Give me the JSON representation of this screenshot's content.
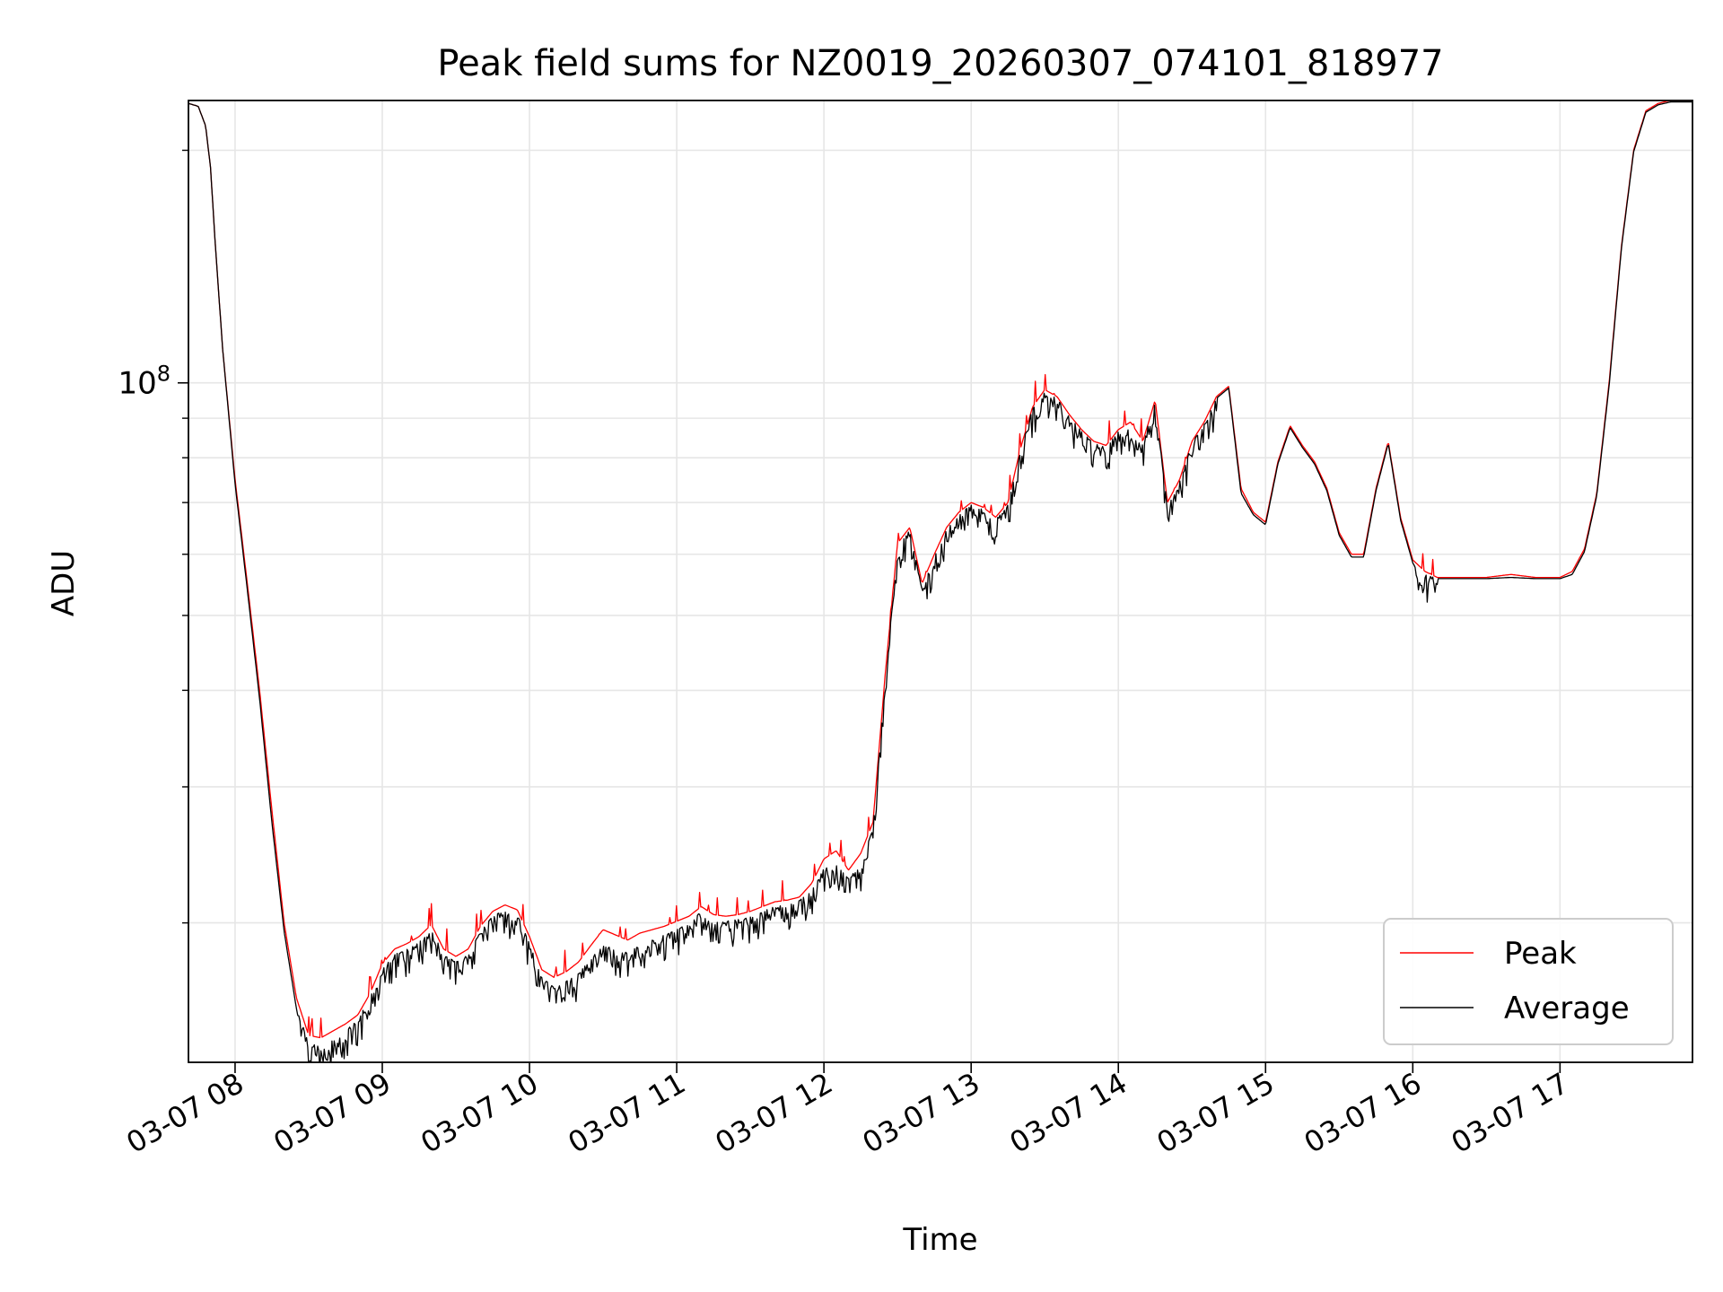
{
  "chart_data": {
    "type": "line",
    "title": "Peak field sums for NZ0019_20260307_074101_818977",
    "xlabel": "Time",
    "ylabel": "ADU",
    "y_scale": "log",
    "ylim": [
      13200000,
      232000000
    ],
    "xlim": [
      "03-07 07:41",
      "03-07 17:54"
    ],
    "x_ticks": [
      "03-07 08",
      "03-07 09",
      "03-07 10",
      "03-07 11",
      "03-07 12",
      "03-07 13",
      "03-07 14",
      "03-07 15",
      "03-07 16",
      "03-07 17"
    ],
    "y_tick_label_base": "10",
    "y_tick_label_exp": "8",
    "grid": true,
    "legend_position": "lower right",
    "series": [
      {
        "name": "Peak",
        "color": "#ff0000",
        "x": [
          "07:41",
          "07:45",
          "07:48",
          "07:50",
          "07:52",
          "07:55",
          "08:00",
          "08:05",
          "08:10",
          "08:15",
          "08:20",
          "08:25",
          "08:30",
          "08:35",
          "08:40",
          "08:45",
          "08:50",
          "08:55",
          "09:00",
          "09:05",
          "09:10",
          "09:15",
          "09:20",
          "09:25",
          "09:30",
          "09:35",
          "09:40",
          "09:45",
          "09:50",
          "09:55",
          "10:00",
          "10:05",
          "10:10",
          "10:15",
          "10:20",
          "10:25",
          "10:30",
          "10:35",
          "10:40",
          "10:45",
          "10:50",
          "10:55",
          "11:00",
          "11:05",
          "11:10",
          "11:15",
          "11:20",
          "11:25",
          "11:30",
          "11:35",
          "11:40",
          "11:45",
          "11:50",
          "11:55",
          "12:00",
          "12:05",
          "12:10",
          "12:15",
          "12:20",
          "12:25",
          "12:30",
          "12:35",
          "12:40",
          "12:45",
          "12:50",
          "12:55",
          "13:00",
          "13:05",
          "13:10",
          "13:15",
          "13:20",
          "13:25",
          "13:30",
          "13:35",
          "13:40",
          "13:45",
          "13:50",
          "13:55",
          "14:00",
          "14:05",
          "14:10",
          "14:15",
          "14:20",
          "14:25",
          "14:30",
          "14:35",
          "14:40",
          "14:45",
          "14:50",
          "14:55",
          "15:00",
          "15:05",
          "15:10",
          "15:15",
          "15:20",
          "15:25",
          "15:30",
          "15:35",
          "15:40",
          "15:45",
          "15:50",
          "15:55",
          "16:00",
          "16:05",
          "16:10",
          "16:20",
          "16:30",
          "16:40",
          "16:50",
          "17:00",
          "17:05",
          "17:10",
          "17:15",
          "17:20",
          "17:25",
          "17:30",
          "17:35",
          "17:40",
          "17:45",
          "17:50",
          "17:54"
        ],
        "values": [
          230000000,
          228000000,
          215000000,
          190000000,
          150000000,
          110000000,
          75000000,
          55000000,
          40000000,
          28000000,
          20000000,
          16000000,
          14300000,
          14200000,
          14500000,
          14800000,
          15200000,
          16200000,
          17700000,
          18500000,
          18800000,
          19200000,
          19900000,
          18500000,
          18100000,
          18500000,
          19800000,
          20700000,
          21100000,
          20800000,
          19200000,
          17400000,
          17000000,
          17300000,
          17800000,
          18700000,
          19600000,
          19300000,
          19000000,
          19400000,
          19600000,
          19800000,
          20100000,
          20400000,
          21000000,
          20500000,
          20400000,
          20500000,
          20700000,
          21000000,
          21300000,
          21400000,
          21600000,
          22500000,
          24200000,
          24800000,
          23400000,
          24600000,
          27000000,
          42000000,
          62000000,
          65000000,
          55000000,
          60000000,
          65000000,
          68000000,
          70000000,
          69000000,
          67000000,
          70000000,
          82000000,
          93000000,
          98000000,
          96000000,
          91000000,
          87000000,
          84000000,
          83000000,
          87000000,
          89000000,
          84000000,
          95000000,
          70000000,
          75000000,
          84000000,
          89000000,
          96000000,
          99000000,
          73000000,
          68000000,
          66000000,
          79000000,
          88000000,
          83000000,
          79000000,
          73000000,
          64000000,
          60000000,
          60000000,
          73000000,
          84000000,
          67000000,
          59000000,
          57000000,
          56000000,
          56000000,
          56000000,
          56500000,
          56000000,
          56000000,
          57000000,
          61000000,
          72000000,
          100000000,
          150000000,
          200000000,
          225000000,
          230000000,
          232000000,
          232000000,
          232000000
        ]
      },
      {
        "name": "Average",
        "color": "#000000",
        "x": [
          "07:41",
          "07:45",
          "07:48",
          "07:50",
          "07:52",
          "07:55",
          "08:00",
          "08:05",
          "08:10",
          "08:15",
          "08:20",
          "08:25",
          "08:30",
          "08:35",
          "08:40",
          "08:45",
          "08:50",
          "08:55",
          "09:00",
          "09:05",
          "09:10",
          "09:15",
          "09:20",
          "09:25",
          "09:30",
          "09:35",
          "09:40",
          "09:45",
          "09:50",
          "09:55",
          "10:00",
          "10:05",
          "10:10",
          "10:15",
          "10:20",
          "10:25",
          "10:30",
          "10:35",
          "10:40",
          "10:45",
          "10:50",
          "10:55",
          "11:00",
          "11:05",
          "11:10",
          "11:15",
          "11:20",
          "11:25",
          "11:30",
          "11:35",
          "11:40",
          "11:45",
          "11:50",
          "11:55",
          "12:00",
          "12:05",
          "12:10",
          "12:15",
          "12:20",
          "12:25",
          "12:30",
          "12:35",
          "12:40",
          "12:45",
          "12:50",
          "12:55",
          "13:00",
          "13:05",
          "13:10",
          "13:15",
          "13:20",
          "13:25",
          "13:30",
          "13:35",
          "13:40",
          "13:45",
          "13:50",
          "13:55",
          "14:00",
          "14:05",
          "14:10",
          "14:15",
          "14:20",
          "14:25",
          "14:30",
          "14:35",
          "14:40",
          "14:45",
          "14:50",
          "14:55",
          "15:00",
          "15:05",
          "15:10",
          "15:15",
          "15:20",
          "15:25",
          "15:30",
          "15:35",
          "15:40",
          "15:45",
          "15:50",
          "15:55",
          "16:00",
          "16:05",
          "16:10",
          "16:20",
          "16:30",
          "16:40",
          "16:50",
          "17:00",
          "17:05",
          "17:10",
          "17:15",
          "17:20",
          "17:25",
          "17:30",
          "17:35",
          "17:40",
          "17:45",
          "17:50",
          "17:54"
        ],
        "values": [
          230000000,
          228000000,
          215000000,
          190000000,
          150000000,
          110000000,
          74000000,
          54000000,
          39000000,
          27000000,
          19500000,
          15500000,
          14000000,
          13800000,
          14100000,
          14500000,
          15000000,
          16000000,
          17400000,
          18200000,
          18500000,
          18900000,
          19600000,
          18200000,
          17800000,
          18200000,
          19500000,
          20400000,
          20800000,
          20500000,
          18800000,
          17000000,
          16500000,
          16800000,
          17200000,
          18000000,
          18700000,
          18500000,
          18300000,
          18700000,
          19000000,
          19300000,
          19600000,
          20000000,
          20700000,
          20000000,
          20100000,
          20200000,
          20400000,
          20700000,
          21000000,
          21200000,
          21400000,
          22000000,
          23500000,
          23800000,
          22800000,
          23800000,
          26500000,
          41000000,
          61500000,
          64500000,
          54000000,
          59500000,
          64500000,
          67500000,
          69500000,
          68500000,
          66500000,
          69500000,
          81500000,
          92500000,
          97500000,
          95500000,
          90500000,
          86500000,
          83500000,
          82500000,
          86500000,
          88500000,
          83500000,
          94500000,
          69000000,
          74500000,
          83500000,
          88500000,
          95500000,
          98500000,
          72000000,
          67500000,
          65500000,
          78500000,
          87500000,
          82500000,
          78500000,
          72500000,
          63500000,
          59500000,
          59500000,
          72500000,
          83500000,
          66500000,
          58500000,
          56500000,
          55800000,
          55800000,
          55800000,
          56000000,
          55800000,
          55800000,
          56500000,
          60500000,
          71500000,
          99000000,
          149000000,
          199000000,
          224000000,
          229000000,
          231000000,
          231000000,
          231000000
        ]
      }
    ]
  }
}
